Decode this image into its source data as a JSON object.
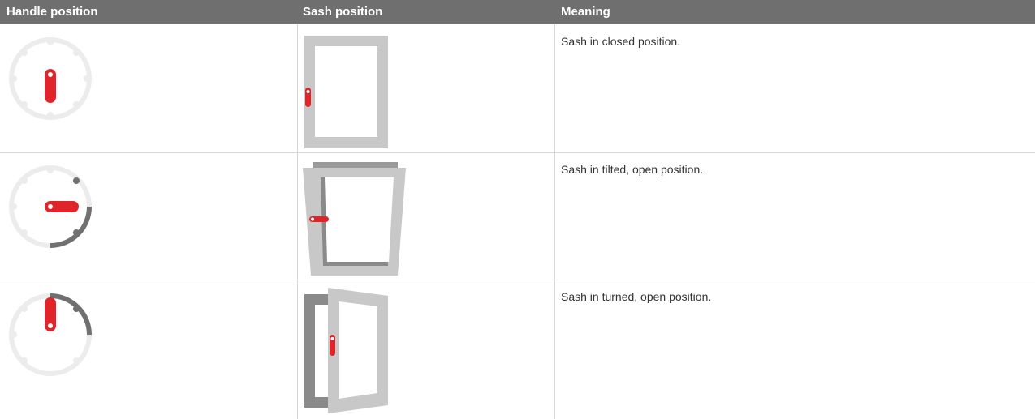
{
  "table": {
    "header": [
      "Handle position",
      "Sash position",
      "Meaning"
    ],
    "rows": [
      {
        "meaning": "Sash in closed position."
      },
      {
        "meaning": "Sash in tilted, open position."
      },
      {
        "meaning": "Sash in turned, open position."
      }
    ]
  }
}
